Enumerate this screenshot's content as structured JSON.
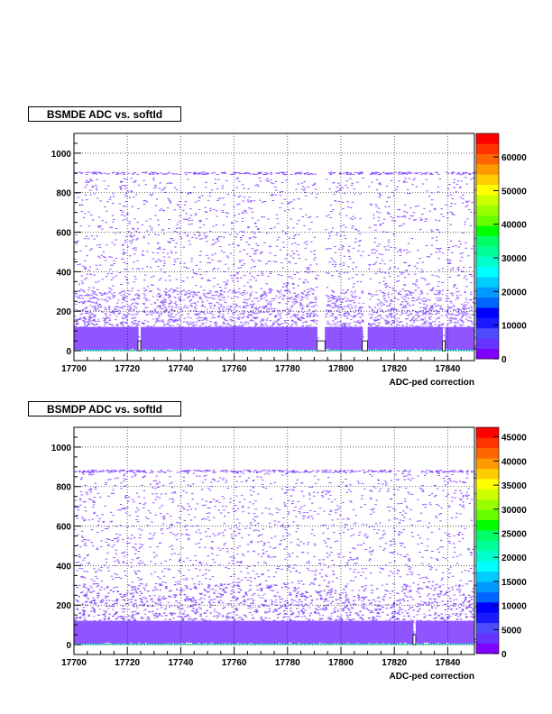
{
  "chart_data": [
    {
      "type": "heatmap",
      "title": "BSMDE ADC vs. softId",
      "xlabel": "ADC-ped correction",
      "ylabel": "",
      "xlim": [
        17700,
        17850
      ],
      "ylim": [
        -50,
        1100
      ],
      "x_ticks": [
        "17700",
        "17720",
        "17740",
        "17760",
        "17780",
        "17800",
        "17820",
        "17840"
      ],
      "x_tick_values": [
        17700,
        17720,
        17740,
        17760,
        17780,
        17800,
        17820,
        17840
      ],
      "y_ticks": [
        "0",
        "200",
        "400",
        "600",
        "800",
        "1000"
      ],
      "y_tick_values": [
        0,
        200,
        400,
        600,
        800,
        1000
      ],
      "z_ticks": [
        "0",
        "10000",
        "20000",
        "30000",
        "40000",
        "50000",
        "60000"
      ],
      "z_tick_values": [
        0,
        10000,
        20000,
        30000,
        40000,
        50000,
        60000
      ],
      "zlim": [
        0,
        67000
      ],
      "grid": true,
      "saturation_band_y": 900,
      "dead_channels": [
        {
          "x": 17724,
          "width": 1,
          "ymax": 50
        },
        {
          "x": 17791,
          "width": 3,
          "ymax": 50
        },
        {
          "x": 17808,
          "width": 2,
          "ymax": 50
        },
        {
          "x": 17838,
          "width": 1,
          "ymax": 50
        }
      ]
    },
    {
      "type": "heatmap",
      "title": "BSMDP ADC vs. softId",
      "xlabel": "ADC-ped correction",
      "ylabel": "",
      "xlim": [
        17700,
        17850
      ],
      "ylim": [
        -50,
        1100
      ],
      "x_ticks": [
        "17700",
        "17720",
        "17740",
        "17760",
        "17780",
        "17800",
        "17820",
        "17840"
      ],
      "x_tick_values": [
        17700,
        17720,
        17740,
        17760,
        17780,
        17800,
        17820,
        17840
      ],
      "y_ticks": [
        "0",
        "200",
        "400",
        "600",
        "800",
        "1000"
      ],
      "y_tick_values": [
        0,
        200,
        400,
        600,
        800,
        1000
      ],
      "z_ticks": [
        "0",
        "5000",
        "10000",
        "15000",
        "20000",
        "25000",
        "30000",
        "35000",
        "40000",
        "45000"
      ],
      "z_tick_values": [
        0,
        5000,
        10000,
        15000,
        20000,
        25000,
        30000,
        35000,
        40000,
        45000
      ],
      "zlim": [
        0,
        47000
      ],
      "grid": true,
      "saturation_band_y": 880,
      "dead_channels": [
        {
          "x": 17827,
          "width": 1,
          "ymax": 50
        }
      ]
    }
  ],
  "palette_colors": [
    "#7f00ff",
    "#6633ff",
    "#4d4dff",
    "#1a1aff",
    "#0000ff",
    "#0066ff",
    "#0099ff",
    "#00ccff",
    "#00ffff",
    "#00ffcc",
    "#00ff99",
    "#00ff66",
    "#00ff00",
    "#66ff00",
    "#99ff00",
    "#ccff00",
    "#ffff00",
    "#ffcc00",
    "#ff9900",
    "#ff6600",
    "#ff3300",
    "#ff0000"
  ],
  "points_color": "#8a4dff",
  "footer_text": ""
}
